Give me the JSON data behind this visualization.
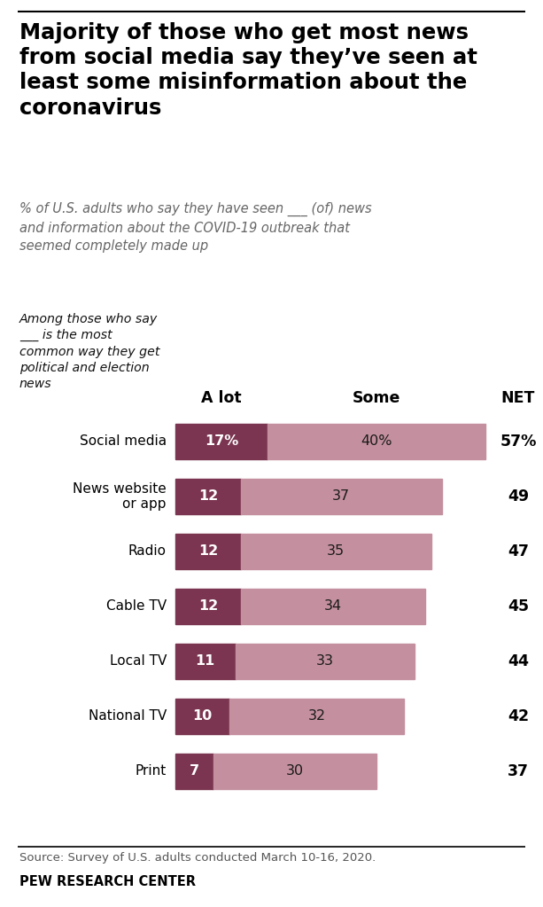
{
  "title": "Majority of those who get most news\nfrom social media say they’ve seen at\nleast some misinformation about the\ncoronavirus",
  "subtitle": "% of U.S. adults who say they have seen ___ (of) news\nand information about the COVID-19 outbreak that\nseemed completely made up",
  "axis_label": "Among those who say\n___ is the most\ncommon way they get\npolitical and election\nnews",
  "col_labels": [
    "A lot",
    "Some",
    "NET"
  ],
  "categories": [
    "Social media",
    "News website\nor app",
    "Radio",
    "Cable TV",
    "Local TV",
    "National TV",
    "Print"
  ],
  "alot": [
    17,
    12,
    12,
    12,
    11,
    10,
    7
  ],
  "some": [
    40,
    37,
    35,
    34,
    33,
    32,
    30
  ],
  "net": [
    "57%",
    "49",
    "47",
    "45",
    "44",
    "42",
    "37"
  ],
  "alot_pct_labels": [
    "17%",
    "12",
    "12",
    "12",
    "11",
    "10",
    "7"
  ],
  "some_pct_labels": [
    "40%",
    "37",
    "35",
    "34",
    "33",
    "32",
    "30"
  ],
  "color_alot": "#7b3550",
  "color_some": "#c4909f",
  "source_text": "Source: Survey of U.S. adults conducted March 10-16, 2020.",
  "footer_text": "PEW RESEARCH CENTER",
  "background_color": "#ffffff",
  "bar_max": 57
}
